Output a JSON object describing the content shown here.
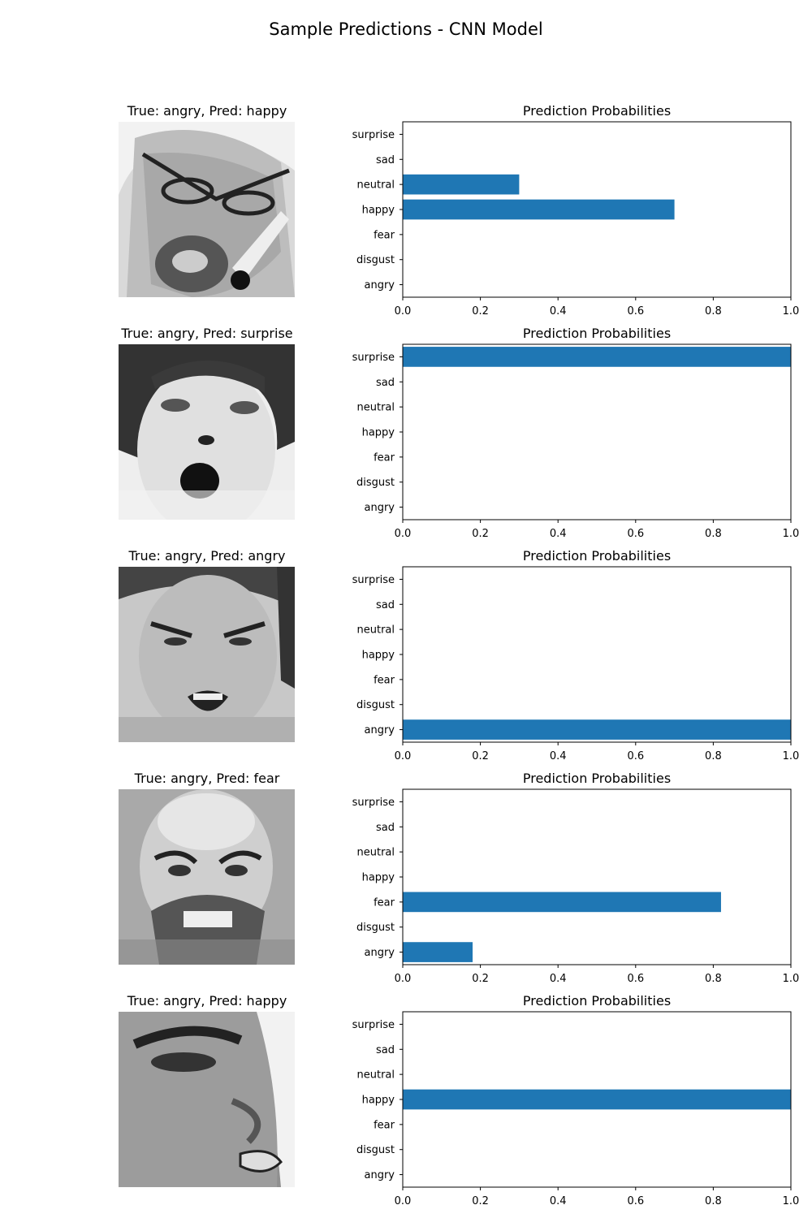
{
  "figure": {
    "title": "Sample Predictions - CNN Model"
  },
  "face_icons": [
    "face-image-angry-glasses-phone",
    "face-image-open-mouth",
    "face-image-snarling",
    "face-image-bald-bearded",
    "face-image-squinting-closeup"
  ],
  "bar_color": "#1f77b4",
  "chart_data": [
    {
      "type": "bar",
      "orientation": "horizontal",
      "title": "Prediction Probabilities",
      "image_title": "True: angry, Pred: happy",
      "categories": [
        "angry",
        "disgust",
        "fear",
        "happy",
        "neutral",
        "sad",
        "surprise"
      ],
      "values": [
        0.0,
        0.0,
        0.0,
        0.7,
        0.3,
        0.0,
        0.0
      ],
      "xlim": [
        0,
        1
      ],
      "xticks": [
        "0.0",
        "0.2",
        "0.4",
        "0.6",
        "0.8",
        "1.0"
      ],
      "grid": false
    },
    {
      "type": "bar",
      "orientation": "horizontal",
      "title": "Prediction Probabilities",
      "image_title": "True: angry, Pred: surprise",
      "categories": [
        "angry",
        "disgust",
        "fear",
        "happy",
        "neutral",
        "sad",
        "surprise"
      ],
      "values": [
        0.0,
        0.0,
        0.0,
        0.0,
        0.0,
        0.0,
        1.0
      ],
      "xlim": [
        0,
        1
      ],
      "xticks": [
        "0.0",
        "0.2",
        "0.4",
        "0.6",
        "0.8",
        "1.0"
      ],
      "grid": false
    },
    {
      "type": "bar",
      "orientation": "horizontal",
      "title": "Prediction Probabilities",
      "image_title": "True: angry, Pred: angry",
      "categories": [
        "angry",
        "disgust",
        "fear",
        "happy",
        "neutral",
        "sad",
        "surprise"
      ],
      "values": [
        1.0,
        0.0,
        0.0,
        0.0,
        0.0,
        0.0,
        0.0
      ],
      "xlim": [
        0,
        1
      ],
      "xticks": [
        "0.0",
        "0.2",
        "0.4",
        "0.6",
        "0.8",
        "1.0"
      ],
      "grid": false
    },
    {
      "type": "bar",
      "orientation": "horizontal",
      "title": "Prediction Probabilities",
      "image_title": "True: angry, Pred: fear",
      "categories": [
        "angry",
        "disgust",
        "fear",
        "happy",
        "neutral",
        "sad",
        "surprise"
      ],
      "values": [
        0.18,
        0.0,
        0.82,
        0.0,
        0.0,
        0.0,
        0.0
      ],
      "xlim": [
        0,
        1
      ],
      "xticks": [
        "0.0",
        "0.2",
        "0.4",
        "0.6",
        "0.8",
        "1.0"
      ],
      "grid": false
    },
    {
      "type": "bar",
      "orientation": "horizontal",
      "title": "Prediction Probabilities",
      "image_title": "True: angry, Pred: happy",
      "categories": [
        "angry",
        "disgust",
        "fear",
        "happy",
        "neutral",
        "sad",
        "surprise"
      ],
      "values": [
        0.0,
        0.0,
        0.0,
        1.0,
        0.0,
        0.0,
        0.0
      ],
      "xlim": [
        0,
        1
      ],
      "xticks": [
        "0.0",
        "0.2",
        "0.4",
        "0.6",
        "0.8",
        "1.0"
      ],
      "grid": false
    }
  ]
}
